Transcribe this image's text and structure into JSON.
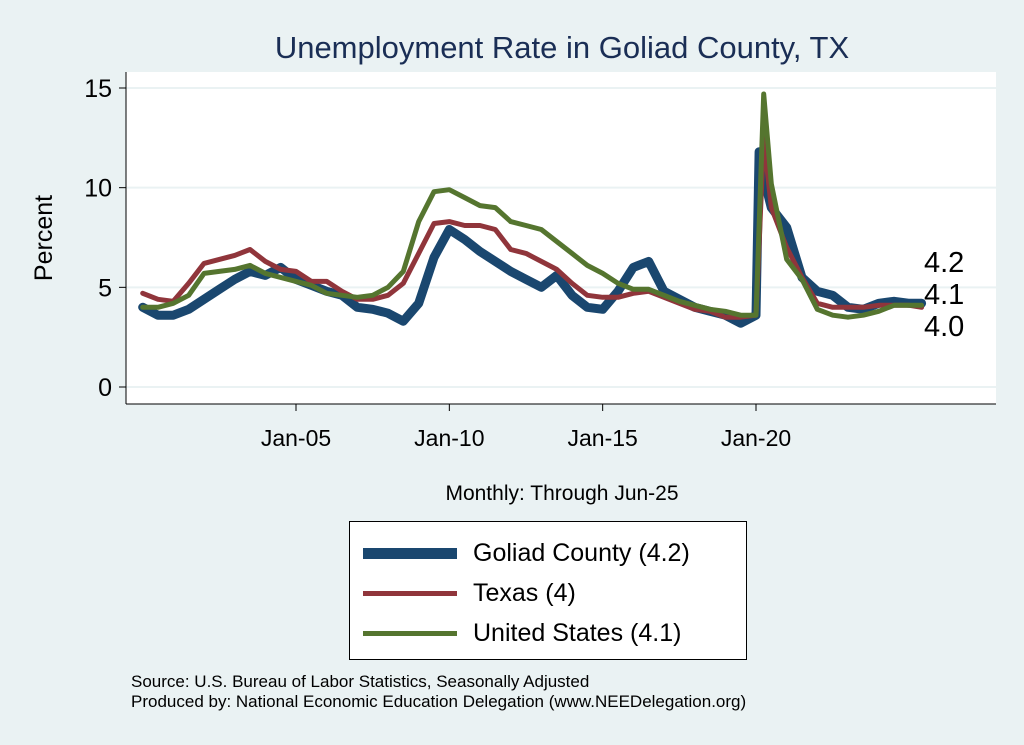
{
  "chart_data": {
    "type": "line",
    "title": "Unemployment Rate in Goliad  County, TX",
    "xlabel": "Monthly: Through Jun-25",
    "ylabel": "Percent",
    "ylim": [
      0,
      15
    ],
    "xlim": [
      1999.0,
      2027.7
    ],
    "yticks": [
      0,
      5,
      10,
      15
    ],
    "xticks": [
      {
        "label": "Jan-05",
        "value": 2005
      },
      {
        "label": "Jan-10",
        "value": 2010
      },
      {
        "label": "Jan-15",
        "value": 2015
      },
      {
        "label": "Jan-20",
        "value": 2020
      }
    ],
    "grid": true,
    "legend_position": "bottom",
    "series": [
      {
        "name": "Goliad  County (4.2)",
        "color": "#1a476f",
        "width": 9,
        "end_label": "4.2",
        "x": [
          2000,
          2000.5,
          2001,
          2001.5,
          2002,
          2002.5,
          2003,
          2003.5,
          2004,
          2004.5,
          2005,
          2005.5,
          2006,
          2006.5,
          2007,
          2007.5,
          2008,
          2008.5,
          2009,
          2009.5,
          2010,
          2010.5,
          2011,
          2011.5,
          2012,
          2012.5,
          2013,
          2013.5,
          2014,
          2014.5,
          2015,
          2015.5,
          2016,
          2016.5,
          2017,
          2017.5,
          2018,
          2018.5,
          2019,
          2019.5,
          2020,
          2020.1,
          2020.25,
          2020.5,
          2021,
          2021.5,
          2022,
          2022.5,
          2023,
          2023.5,
          2024,
          2024.5,
          2025,
          2025.4
        ],
        "y": [
          4.0,
          3.6,
          3.6,
          3.9,
          4.4,
          4.9,
          5.4,
          5.8,
          5.6,
          6.0,
          5.4,
          5.1,
          4.8,
          4.6,
          4.0,
          3.9,
          3.7,
          3.3,
          4.2,
          6.5,
          7.9,
          7.4,
          6.8,
          6.3,
          5.8,
          5.4,
          5.0,
          5.6,
          4.6,
          4.0,
          3.9,
          4.8,
          6.0,
          6.3,
          4.8,
          4.4,
          4.0,
          3.8,
          3.6,
          3.2,
          3.6,
          11.8,
          10.5,
          9.0,
          8.0,
          5.5,
          4.8,
          4.6,
          4.0,
          3.9,
          4.2,
          4.3,
          4.2,
          4.2
        ]
      },
      {
        "name": "Texas (4)",
        "color": "#90353b",
        "width": 5,
        "end_label": "4.0",
        "x": [
          2000,
          2000.5,
          2001,
          2001.5,
          2002,
          2002.5,
          2003,
          2003.5,
          2004,
          2004.5,
          2005,
          2005.5,
          2006,
          2006.5,
          2007,
          2007.5,
          2008,
          2008.5,
          2009,
          2009.5,
          2010,
          2010.5,
          2011,
          2011.5,
          2012,
          2012.5,
          2013,
          2013.5,
          2014,
          2014.5,
          2015,
          2015.5,
          2016,
          2016.5,
          2017,
          2017.5,
          2018,
          2018.5,
          2019,
          2019.5,
          2020,
          2020.25,
          2020.5,
          2021,
          2021.5,
          2022,
          2022.5,
          2023,
          2023.5,
          2024,
          2024.5,
          2025,
          2025.4
        ],
        "y": [
          4.7,
          4.4,
          4.3,
          5.2,
          6.2,
          6.4,
          6.6,
          6.9,
          6.3,
          5.9,
          5.8,
          5.3,
          5.3,
          4.8,
          4.4,
          4.4,
          4.6,
          5.2,
          6.7,
          8.2,
          8.3,
          8.1,
          8.1,
          7.9,
          6.9,
          6.7,
          6.3,
          5.9,
          5.2,
          4.6,
          4.5,
          4.5,
          4.7,
          4.8,
          4.5,
          4.2,
          3.9,
          3.8,
          3.5,
          3.5,
          3.6,
          12.5,
          9.0,
          7.0,
          5.5,
          4.2,
          4.0,
          4.0,
          4.0,
          4.1,
          4.1,
          4.1,
          4.0
        ]
      },
      {
        "name": "United States (4.1)",
        "color": "#55752f",
        "width": 5,
        "end_label": "4.1",
        "x": [
          2000,
          2000.5,
          2001,
          2001.5,
          2002,
          2002.5,
          2003,
          2003.5,
          2004,
          2004.5,
          2005,
          2005.5,
          2006,
          2006.5,
          2007,
          2007.5,
          2008,
          2008.5,
          2009,
          2009.5,
          2010,
          2010.5,
          2011,
          2011.5,
          2012,
          2012.5,
          2013,
          2013.5,
          2014,
          2014.5,
          2015,
          2015.5,
          2016,
          2016.5,
          2017,
          2017.5,
          2018,
          2018.5,
          2019,
          2019.5,
          2020,
          2020.25,
          2020.5,
          2021,
          2021.5,
          2022,
          2022.5,
          2023,
          2023.5,
          2024,
          2024.5,
          2025,
          2025.4
        ],
        "y": [
          4.0,
          4.0,
          4.2,
          4.6,
          5.7,
          5.8,
          5.9,
          6.1,
          5.7,
          5.5,
          5.3,
          5.1,
          4.7,
          4.6,
          4.5,
          4.6,
          5.0,
          5.8,
          8.3,
          9.8,
          9.9,
          9.5,
          9.1,
          9.0,
          8.3,
          8.1,
          7.9,
          7.3,
          6.7,
          6.1,
          5.7,
          5.2,
          4.9,
          4.9,
          4.6,
          4.3,
          4.1,
          3.9,
          3.8,
          3.6,
          3.6,
          14.7,
          10.2,
          6.4,
          5.4,
          3.9,
          3.6,
          3.5,
          3.6,
          3.8,
          4.1,
          4.1,
          4.1
        ]
      }
    ],
    "end_labels": [
      "4.2",
      "4.1",
      "4.0"
    ]
  },
  "legend": {
    "items": [
      "Goliad  County (4.2)",
      "Texas (4)",
      "United States (4.1)"
    ]
  },
  "notes": {
    "source": "Source: U.S. Bureau of Labor Statistics, Seasonally Adjusted",
    "produced": "Produced by: National Economic Education Delegation (www.NEEDelegation.org)"
  }
}
